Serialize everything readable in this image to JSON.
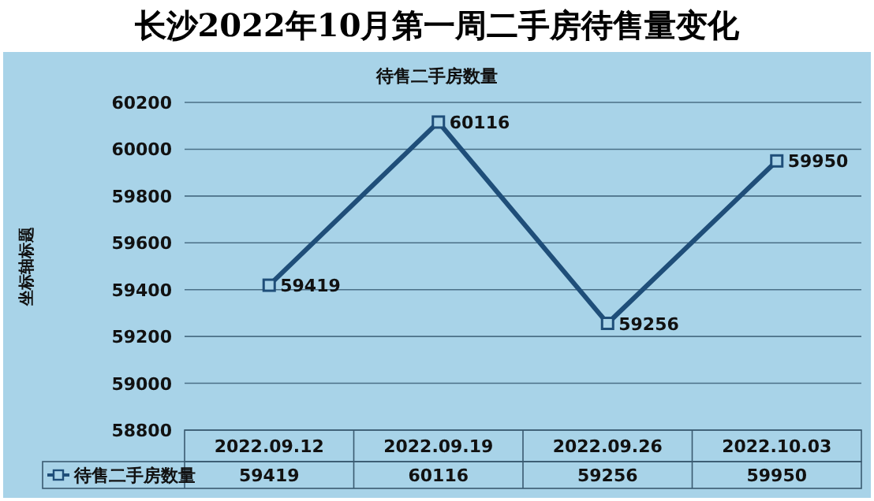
{
  "chart_data": {
    "type": "line",
    "title": "长沙2022年10月第一周二手房待售量变化",
    "subtitle": "待售二手房数量",
    "ylabel": "坐标轴标题",
    "categories": [
      "2022.09.12",
      "2022.09.19",
      "2022.09.26",
      "2022.10.03"
    ],
    "series": [
      {
        "name": "待售二手房数量",
        "color": "#1f4e79",
        "values": [
          59419,
          60116,
          59256,
          59950
        ]
      }
    ],
    "annotations": [
      "59419",
      "60116",
      "59256",
      "59950"
    ],
    "ylim": [
      58800,
      60200
    ],
    "yticks": [
      58800,
      59000,
      59200,
      59400,
      59600,
      59800,
      60000,
      60200
    ],
    "grid": "y",
    "legend": "bottom",
    "marker": "square",
    "line_style": "solid",
    "data_labels": true
  }
}
